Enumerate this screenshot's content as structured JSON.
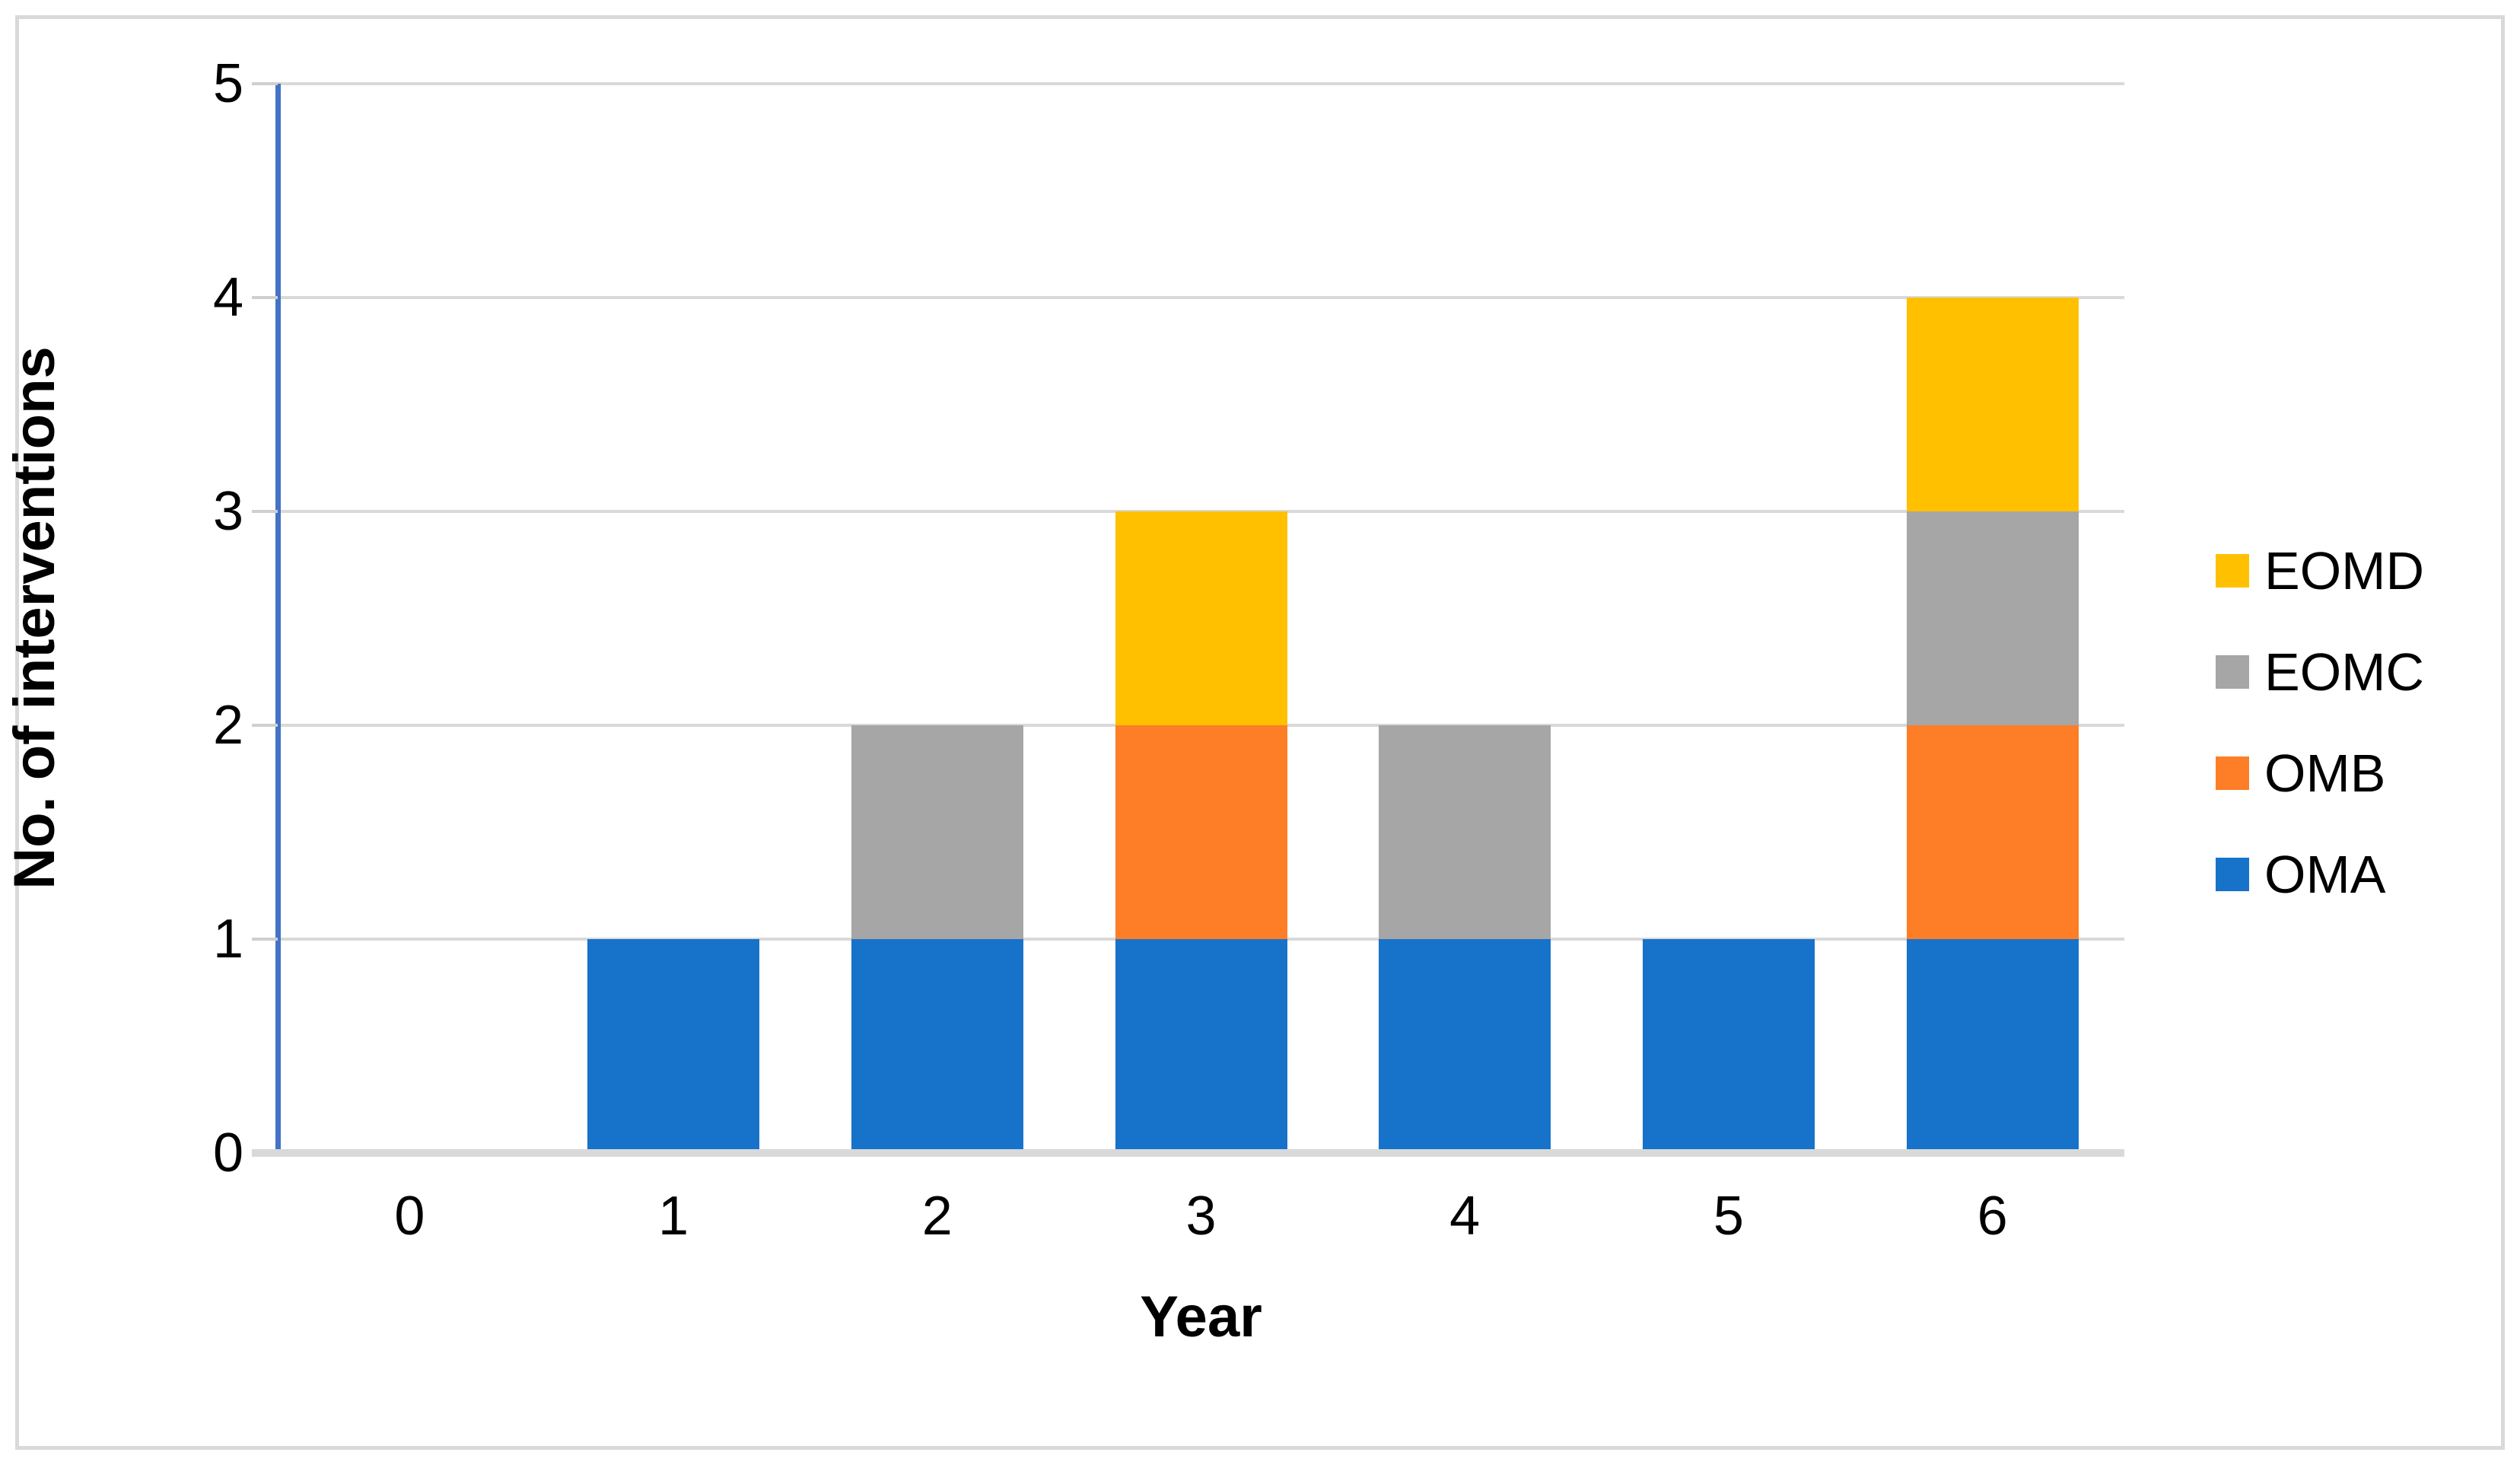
{
  "figure": {
    "background": "#FFFFFF",
    "border_color": "#D9D9D9",
    "grid_color": "#D9D9D9",
    "y_axis_line_color": "#4472C4",
    "baseline_color": "#D9D9D9",
    "text_color": "#000000"
  },
  "chart_data": {
    "type": "bar",
    "stacked": true,
    "title": "",
    "xlabel": "Year",
    "ylabel": "No. of interventions",
    "categories": [
      "0",
      "1",
      "2",
      "3",
      "4",
      "5",
      "6"
    ],
    "series": [
      {
        "name": "OMA",
        "color": "#1772C9",
        "values": [
          0,
          1,
          1,
          1,
          1,
          1,
          1
        ]
      },
      {
        "name": "OMB",
        "color": "#FD7E27",
        "values": [
          0,
          0,
          0,
          1,
          0,
          0,
          1
        ]
      },
      {
        "name": "EOMC",
        "color": "#A6A6A6",
        "values": [
          0,
          0,
          1,
          0,
          1,
          0,
          1
        ]
      },
      {
        "name": "EOMD",
        "color": "#FFC000",
        "values": [
          0,
          0,
          0,
          1,
          0,
          0,
          1
        ]
      }
    ],
    "ylim": [
      0,
      5
    ],
    "yticks": [
      0,
      1,
      2,
      3,
      4,
      5
    ],
    "grid": true,
    "legend_position": "right"
  },
  "legend": {
    "items": [
      {
        "label": "EOMD",
        "color": "#FFC000"
      },
      {
        "label": "EOMC",
        "color": "#A6A6A6"
      },
      {
        "label": "OMB",
        "color": "#FD7E27"
      },
      {
        "label": "OMA",
        "color": "#1772C9"
      }
    ]
  }
}
